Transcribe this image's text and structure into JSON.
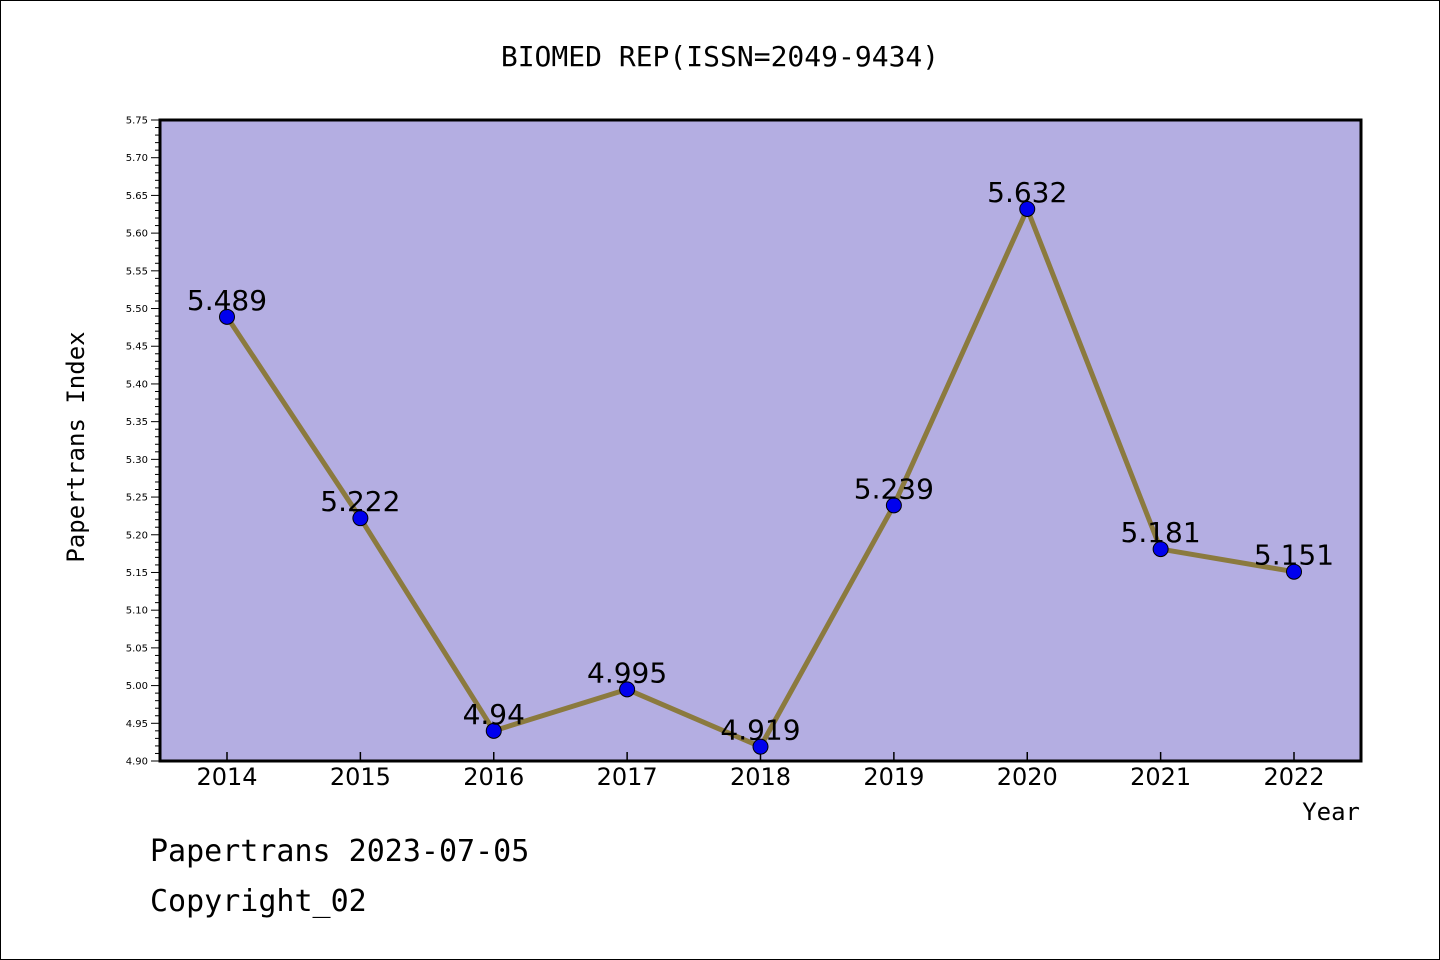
{
  "chart_data": {
    "type": "line",
    "title": "BIOMED REP(ISSN=2049-9434)",
    "xlabel": "Year",
    "ylabel": "Papertrans Index",
    "categories": [
      "2014",
      "2015",
      "2016",
      "2017",
      "2018",
      "2019",
      "2020",
      "2021",
      "2022"
    ],
    "series": [
      {
        "values": [
          5.489,
          5.222,
          4.94,
          4.995,
          4.919,
          5.239,
          5.632,
          5.181,
          5.151
        ],
        "labels": [
          "5.489",
          "5.222",
          "4.94",
          "4.995",
          "4.919",
          "5.239",
          "5.632",
          "5.181",
          "5.151"
        ]
      }
    ],
    "ylim": [
      4.9,
      5.75
    ],
    "yticks": [
      "4.90",
      "4.95",
      "5.00",
      "5.05",
      "5.10",
      "5.15",
      "5.20",
      "5.25",
      "5.30",
      "5.35",
      "5.40",
      "5.45",
      "5.50",
      "5.55",
      "5.60",
      "5.65",
      "5.70",
      "5.75"
    ],
    "grid": false,
    "colors": {
      "plot_background": "#b4aee2",
      "line": "#8b7a3e",
      "marker": "#0000ee"
    }
  },
  "footer": {
    "date_line": "Papertrans 2023-07-05",
    "copyright": "Copyright_02"
  }
}
